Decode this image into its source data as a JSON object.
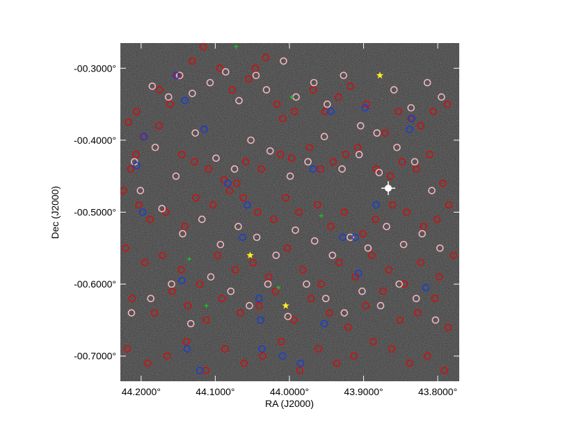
{
  "chart_data": {
    "type": "scatter",
    "xlabel": "RA (J2000)",
    "ylabel": "Dec (J2000)",
    "xlim": [
      44.228,
      43.771
    ],
    "ylim": [
      -0.735,
      -0.265
    ],
    "x_ticks": [
      {
        "value": 44.2,
        "label": "44.2000°"
      },
      {
        "value": 44.1,
        "label": "44.1000°"
      },
      {
        "value": 44.0,
        "label": "44.0000°"
      },
      {
        "value": 43.9,
        "label": "43.9000°"
      },
      {
        "value": 43.8,
        "label": "43.8000°"
      }
    ],
    "y_ticks": [
      {
        "value": -0.3,
        "label": "-00.3000°"
      },
      {
        "value": -0.4,
        "label": "-00.4000°"
      },
      {
        "value": -0.5,
        "label": "-00.5000°"
      },
      {
        "value": -0.6,
        "label": "-00.6000°"
      },
      {
        "value": -0.7,
        "label": "-00.7000°"
      }
    ],
    "background": "grayscale sky image",
    "marker_colors": {
      "red": "#cc1111",
      "pink": "#f2b8c0",
      "blue": "#1a3fcc",
      "green": "#22bb22",
      "yellow": "#ffee22"
    },
    "series": [
      {
        "marker": "circle",
        "color_key": "red",
        "x": [
          44.217,
          44.197,
          44.207,
          44.214,
          44.206,
          44.175,
          44.151,
          44.131,
          44.116,
          44.094,
          44.077,
          44.055,
          44.046,
          44.032,
          44.017,
          44.009,
          43.993,
          43.968,
          43.952,
          43.934,
          43.918,
          43.896,
          43.871,
          43.853,
          43.836,
          43.823,
          43.806,
          43.787,
          44.176,
          44.161,
          44.145,
          44.128,
          44.109,
          44.088,
          44.071,
          44.059,
          44.038,
          44.012,
          43.997,
          43.973,
          43.958,
          43.941,
          43.924,
          43.908,
          43.883,
          43.864,
          43.848,
          43.829,
          43.811,
          43.793,
          44.224,
          44.203,
          44.188,
          44.167,
          44.141,
          44.126,
          44.103,
          44.081,
          44.062,
          44.043,
          44.021,
          44.005,
          43.987,
          43.962,
          43.944,
          43.926,
          43.901,
          43.884,
          43.861,
          43.842,
          43.819,
          43.801,
          43.785,
          44.221,
          44.195,
          44.171,
          44.146,
          44.121,
          44.097,
          44.073,
          44.049,
          44.028,
          44.003,
          43.982,
          43.957,
          43.933,
          43.911,
          43.889,
          43.866,
          43.845,
          43.823,
          43.798,
          43.779,
          44.212,
          44.182,
          44.158,
          44.137,
          44.112,
          44.091,
          44.066,
          44.041,
          44.019,
          43.994,
          43.971,
          43.946,
          43.921,
          43.897,
          43.874,
          43.851,
          43.827,
          43.804,
          43.786,
          44.219,
          44.191,
          44.165,
          44.139,
          44.113,
          44.087,
          44.061,
          44.036,
          44.011,
          43.986,
          43.961,
          43.936,
          43.913,
          43.887,
          43.862,
          43.838,
          43.814,
          43.791
        ],
        "y": [
          -0.375,
          -0.395,
          -0.42,
          -0.44,
          -0.36,
          -0.33,
          -0.31,
          -0.29,
          -0.27,
          -0.3,
          -0.33,
          -0.315,
          -0.3,
          -0.285,
          -0.35,
          -0.37,
          -0.36,
          -0.33,
          -0.36,
          -0.34,
          -0.325,
          -0.35,
          -0.39,
          -0.36,
          -0.37,
          -0.38,
          -0.36,
          -0.35,
          -0.38,
          -0.35,
          -0.42,
          -0.43,
          -0.44,
          -0.455,
          -0.46,
          -0.43,
          -0.44,
          -0.42,
          -0.425,
          -0.41,
          -0.44,
          -0.43,
          -0.42,
          -0.41,
          -0.44,
          -0.45,
          -0.43,
          -0.44,
          -0.42,
          -0.46,
          -0.47,
          -0.49,
          -0.51,
          -0.5,
          -0.52,
          -0.48,
          -0.49,
          -0.47,
          -0.48,
          -0.5,
          -0.51,
          -0.48,
          -0.5,
          -0.49,
          -0.52,
          -0.5,
          -0.53,
          -0.51,
          -0.49,
          -0.5,
          -0.52,
          -0.51,
          -0.49,
          -0.55,
          -0.57,
          -0.56,
          -0.58,
          -0.6,
          -0.56,
          -0.58,
          -0.57,
          -0.59,
          -0.55,
          -0.58,
          -0.6,
          -0.57,
          -0.59,
          -0.56,
          -0.58,
          -0.6,
          -0.57,
          -0.59,
          -0.56,
          -0.62,
          -0.64,
          -0.61,
          -0.63,
          -0.65,
          -0.62,
          -0.64,
          -0.63,
          -0.61,
          -0.65,
          -0.62,
          -0.64,
          -0.66,
          -0.63,
          -0.61,
          -0.65,
          -0.64,
          -0.62,
          -0.66,
          -0.69,
          -0.71,
          -0.7,
          -0.68,
          -0.72,
          -0.69,
          -0.71,
          -0.7,
          -0.68,
          -0.72,
          -0.69,
          -0.71,
          -0.7,
          -0.68,
          -0.69,
          -0.71,
          -0.7,
          -0.72
        ]
      },
      {
        "marker": "circle",
        "color_key": "pink",
        "x": [
          44.185,
          44.163,
          44.148,
          44.131,
          44.107,
          44.086,
          44.068,
          44.045,
          44.031,
          44.008,
          43.991,
          43.967,
          43.949,
          43.927,
          43.904,
          43.882,
          43.859,
          43.836,
          43.814,
          43.795,
          44.209,
          44.181,
          44.153,
          44.127,
          44.099,
          44.074,
          44.052,
          44.026,
          43.999,
          43.975,
          43.953,
          43.929,
          43.906,
          43.879,
          43.855,
          43.831,
          43.808,
          44.201,
          44.172,
          44.144,
          44.118,
          44.093,
          44.069,
          44.044,
          44.018,
          43.992,
          43.966,
          43.942,
          43.918,
          43.894,
          43.869,
          43.846,
          43.821,
          43.797,
          44.213,
          44.187,
          44.159,
          44.133,
          44.106,
          44.079,
          44.054,
          44.029,
          44.002,
          43.977,
          43.951,
          43.926,
          43.902,
          43.877,
          43.852,
          43.829,
          43.803
        ],
        "y": [
          -0.325,
          -0.34,
          -0.31,
          -0.335,
          -0.32,
          -0.305,
          -0.345,
          -0.31,
          -0.33,
          -0.29,
          -0.34,
          -0.32,
          -0.35,
          -0.31,
          -0.38,
          -0.39,
          -0.33,
          -0.355,
          -0.32,
          -0.34,
          -0.43,
          -0.41,
          -0.45,
          -0.39,
          -0.425,
          -0.44,
          -0.4,
          -0.415,
          -0.45,
          -0.43,
          -0.395,
          -0.44,
          -0.42,
          -0.445,
          -0.41,
          -0.43,
          -0.47,
          -0.47,
          -0.495,
          -0.53,
          -0.51,
          -0.545,
          -0.52,
          -0.535,
          -0.56,
          -0.525,
          -0.54,
          -0.56,
          -0.535,
          -0.55,
          -0.52,
          -0.545,
          -0.53,
          -0.55,
          -0.64,
          -0.62,
          -0.6,
          -0.655,
          -0.59,
          -0.61,
          -0.63,
          -0.6,
          -0.645,
          -0.6,
          -0.62,
          -0.64,
          -0.61,
          -0.63,
          -0.6,
          -0.62,
          -0.65
        ]
      },
      {
        "marker": "circle",
        "color_key": "blue",
        "x": [
          44.206,
          44.196,
          44.153,
          44.141,
          44.115,
          44.083,
          44.057,
          43.968,
          43.944,
          43.898,
          43.835,
          43.838,
          43.883,
          43.911,
          44.041,
          44.063,
          44.145,
          44.198,
          44.039,
          43.953,
          43.928,
          43.907,
          43.816,
          44.138,
          44.121,
          44.037,
          44.009,
          43.985
        ],
        "y": [
          -0.435,
          -0.395,
          -0.31,
          -0.345,
          -0.385,
          -0.46,
          -0.49,
          -0.44,
          -0.36,
          -0.355,
          -0.37,
          -0.385,
          -0.49,
          -0.535,
          -0.62,
          -0.535,
          -0.595,
          -0.5,
          -0.65,
          -0.655,
          -0.535,
          -0.585,
          -0.605,
          -0.69,
          -0.72,
          -0.69,
          -0.7,
          -0.71
        ]
      },
      {
        "marker": "plus",
        "color_key": "green",
        "x": [
          44.072,
          43.997,
          43.957,
          44.135,
          44.112,
          44.015
        ],
        "y": [
          -0.27,
          -0.34,
          -0.505,
          -0.565,
          -0.63,
          -0.605
        ]
      },
      {
        "marker": "star",
        "color_key": "yellow",
        "x": [
          43.878,
          44.053,
          44.005
        ],
        "y": [
          -0.31,
          -0.56,
          -0.63
        ]
      }
    ]
  }
}
